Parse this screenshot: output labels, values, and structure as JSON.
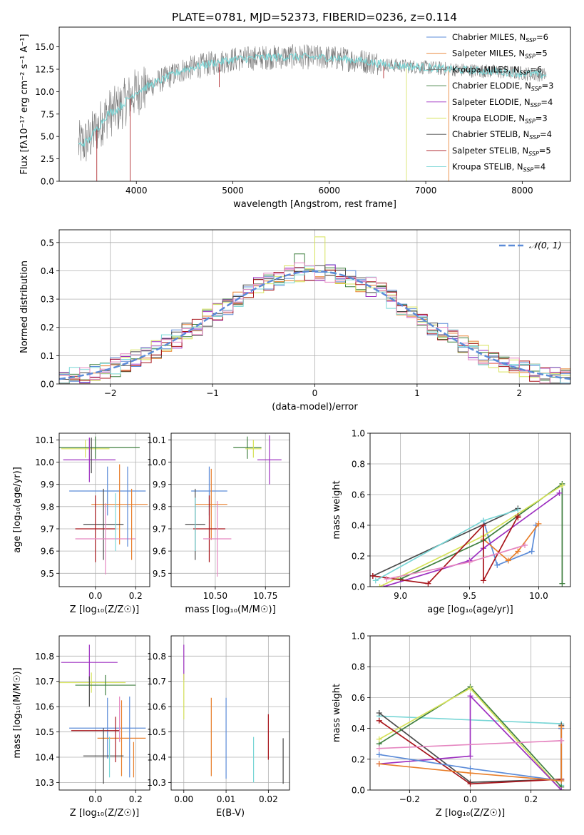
{
  "figure_title": "PLATE=0781, MJD=52373, FIBERID=0236, z=0.114",
  "colors": {
    "Chabrier MILES": "#5b8bd8",
    "Salpeter MILES": "#e87e2a",
    "Kroupa MILES": "#7a7a7a",
    "Chabrier ELODIE": "#3f7f3f",
    "Salpeter ELODIE": "#9d2fc0",
    "Kroupa ELODIE": "#d6e25a",
    "Chabrier STELIB": "#4a4a4a",
    "Salpeter STELIB": "#a8161c",
    "Kroupa STELIB": "#79d6d6",
    "pink": "#e586c0",
    "normal_curve": "#5b8bd8"
  },
  "chart_data": [
    {
      "type": "line",
      "xlabel": "wavelength [Angstrom, rest frame]",
      "ylabel": "Flux [fλ10⁻¹⁷ erg cm⁻² s⁻¹ A⁻¹]",
      "xlim": [
        3200,
        8500
      ],
      "ylim": [
        0,
        17.2
      ],
      "xticks": [
        4000,
        5000,
        6000,
        7000,
        8000
      ],
      "yticks": [
        0.0,
        2.5,
        5.0,
        7.5,
        10.0,
        12.5,
        15.0
      ],
      "legend_position": "top-right",
      "legend": [
        {
          "label": "Chabrier MILES, N",
          "sub": "SSP",
          "tail": "=6",
          "series": "Chabrier MILES"
        },
        {
          "label": "Salpeter MILES, N",
          "sub": "SSP",
          "tail": "=5",
          "series": "Salpeter MILES"
        },
        {
          "label": "Kroupa MILES, N",
          "sub": "SSP",
          "tail": "=6",
          "series": "Kroupa MILES"
        },
        {
          "label": "Chabrier ELODIE, N",
          "sub": "SSP",
          "tail": "=3",
          "series": "Chabrier ELODIE"
        },
        {
          "label": "Salpeter ELODIE, N",
          "sub": "SSP",
          "tail": "=4",
          "series": "Salpeter ELODIE"
        },
        {
          "label": "Kroupa ELODIE, N",
          "sub": "SSP",
          "tail": "=3",
          "series": "Kroupa ELODIE"
        },
        {
          "label": "Chabrier STELIB, N",
          "sub": "SSP",
          "tail": "=4",
          "series": "Chabrier STELIB"
        },
        {
          "label": "Salpeter STELIB, N",
          "sub": "SSP",
          "tail": "=5",
          "series": "Salpeter STELIB"
        },
        {
          "label": "Kroupa STELIB, N",
          "sub": "SSP",
          "tail": "=4",
          "series": "Kroupa STELIB"
        }
      ],
      "continuum_points": [
        [
          3400,
          4.0
        ],
        [
          3500,
          4.5
        ],
        [
          3600,
          6.0
        ],
        [
          3700,
          7.5
        ],
        [
          3800,
          8.0
        ],
        [
          3900,
          9.0
        ],
        [
          4000,
          10.0
        ],
        [
          4200,
          11.0
        ],
        [
          4500,
          12.5
        ],
        [
          4800,
          13.2
        ],
        [
          5000,
          13.6
        ],
        [
          5300,
          13.8
        ],
        [
          5600,
          13.9
        ],
        [
          6000,
          13.8
        ],
        [
          6300,
          13.5
        ],
        [
          6600,
          13.0
        ],
        [
          7000,
          12.7
        ],
        [
          7400,
          12.4
        ],
        [
          7800,
          12.2
        ],
        [
          8200,
          11.9
        ]
      ],
      "data_color": "#7a7a7a"
    },
    {
      "type": "bar",
      "subtype": "step-histogram",
      "xlabel": "(data-model)/error",
      "ylabel": "Normed distribution",
      "xlim": [
        -2.5,
        2.5
      ],
      "ylim": [
        0,
        0.545
      ],
      "xticks": [
        -2,
        -1,
        0,
        1,
        2
      ],
      "yticks": [
        0.0,
        0.1,
        0.2,
        0.3,
        0.4,
        0.5
      ],
      "bin_width": 0.1,
      "legend_position": "top-right",
      "legend_label": "𝒩(0, 1)",
      "normal": {
        "mean": 0,
        "sigma": 1
      }
    },
    {
      "type": "scatter",
      "subtype": "errorbar",
      "xlabel": "Z [log₁₀(Z/Z☉)]",
      "ylabel": "age  [log₁₀(age/yr)]",
      "xlim": [
        -0.18,
        0.27
      ],
      "ylim": [
        9.44,
        10.13
      ],
      "xticks": [
        0.0,
        0.2
      ],
      "yticks": [
        9.5,
        9.6,
        9.7,
        9.8,
        9.9,
        10.0,
        10.1
      ],
      "points": [
        {
          "series": "Kroupa ELODIE",
          "x": -0.05,
          "y": 10.06,
          "xerr": 0.12,
          "yerr": 0.04
        },
        {
          "series": "Chabrier ELODIE",
          "x": 0.0,
          "y": 10.065,
          "xerr": 0.22,
          "yerr": 0.05
        },
        {
          "series": "Salpeter ELODIE",
          "x": -0.03,
          "y": 10.01,
          "xerr": 0.13,
          "yerr": 0.1
        },
        {
          "series": "Chabrier MILES",
          "x": 0.06,
          "y": 9.87,
          "xerr": 0.19,
          "yerr": 0.11
        },
        {
          "series": "Salpeter MILES",
          "x": 0.12,
          "y": 9.81,
          "xerr": 0.14,
          "yerr": 0.18
        },
        {
          "series": "Chabrier STELIB",
          "x": 0.04,
          "y": 9.72,
          "xerr": 0.1,
          "yerr": 0.16
        },
        {
          "series": "Salpeter STELIB",
          "x": 0.0,
          "y": 9.7,
          "xerr": 0.1,
          "yerr": 0.15
        },
        {
          "series": "pink",
          "x": 0.05,
          "y": 9.655,
          "xerr": 0.15,
          "yerr": 0.16
        },
        {
          "series": "Chabrier MILES",
          "x": 0.16,
          "y": 9.8,
          "xerr": 0.0,
          "yerr": 0.18
        },
        {
          "series": "Salpeter MILES",
          "x": 0.18,
          "y": 9.72,
          "xerr": 0.0,
          "yerr": 0.16
        },
        {
          "series": "Kroupa STELIB",
          "x": 0.1,
          "y": 9.73,
          "xerr": 0.0,
          "yerr": 0.13
        },
        {
          "series": "Chabrier STELIB",
          "x": -0.02,
          "y": 10.03,
          "xerr": 0.0,
          "yerr": 0.08
        }
      ]
    },
    {
      "type": "scatter",
      "subtype": "errorbar",
      "xlabel": "mass [log₁₀(M/M☉)]",
      "ylabel": "",
      "xlim": [
        10.28,
        10.87
      ],
      "ylim": [
        9.44,
        10.13
      ],
      "xticks": [
        10.5,
        10.75
      ],
      "tick_labels": [
        "10.50",
        "10.75"
      ],
      "yticks": [
        9.5,
        9.6,
        9.7,
        9.8,
        9.9,
        10.0,
        10.1
      ],
      "points": [
        {
          "series": "Chabrier ELODIE",
          "x": 10.66,
          "y": 10.065,
          "xerr": 0.07,
          "yerr": 0.05
        },
        {
          "series": "Kroupa ELODIE",
          "x": 10.69,
          "y": 10.06,
          "xerr": 0.04,
          "yerr": 0.04
        },
        {
          "series": "Salpeter ELODIE",
          "x": 10.77,
          "y": 10.01,
          "xerr": 0.06,
          "yerr": 0.11
        },
        {
          "series": "Chabrier MILES",
          "x": 10.47,
          "y": 9.87,
          "xerr": 0.09,
          "yerr": 0.11
        },
        {
          "series": "Salpeter MILES",
          "x": 10.48,
          "y": 9.81,
          "xerr": 0.08,
          "yerr": 0.16
        },
        {
          "series": "Chabrier STELIB",
          "x": 10.4,
          "y": 9.72,
          "xerr": 0.05,
          "yerr": 0.16
        },
        {
          "series": "Salpeter STELIB",
          "x": 10.47,
          "y": 9.7,
          "xerr": 0.08,
          "yerr": 0.15
        },
        {
          "series": "pink",
          "x": 10.51,
          "y": 9.655,
          "xerr": 0.07,
          "yerr": 0.17
        },
        {
          "series": "Kroupa STELIB",
          "x": 10.4,
          "y": 9.72,
          "xerr": 0.0,
          "yerr": 0.12
        }
      ]
    },
    {
      "type": "line",
      "xlabel": "age  [log₁₀(age/yr)]",
      "ylabel": "mass weight",
      "xlim": [
        8.78,
        10.23
      ],
      "ylim": [
        0,
        1.0
      ],
      "xticks": [
        9.0,
        9.5,
        10.0
      ],
      "yticks": [
        0.0,
        0.2,
        0.4,
        0.6,
        0.8,
        1.0
      ],
      "series": [
        {
          "name": "Chabrier MILES",
          "x": [
            9.6,
            9.7,
            9.95,
            9.98
          ],
          "y": [
            0.43,
            0.14,
            0.23,
            0.4
          ]
        },
        {
          "name": "Salpeter MILES",
          "x": [
            9.6,
            9.78,
            9.85,
            10.0
          ],
          "y": [
            0.31,
            0.17,
            0.23,
            0.41
          ]
        },
        {
          "name": "Chabrier ELODIE",
          "x": [
            9.0,
            9.6,
            10.17,
            10.17
          ],
          "y": [
            0.05,
            0.3,
            0.67,
            0.02
          ]
        },
        {
          "name": "Salpeter ELODIE",
          "x": [
            8.88,
            9.5,
            9.6,
            10.15
          ],
          "y": [
            0.0,
            0.17,
            0.25,
            0.61
          ]
        },
        {
          "name": "Kroupa ELODIE",
          "x": [
            8.85,
            9.6,
            10.17
          ],
          "y": [
            0.0,
            0.33,
            0.66
          ]
        },
        {
          "name": "Chabrier STELIB",
          "x": [
            8.8,
            9.85
          ],
          "y": [
            0.07,
            0.51
          ]
        },
        {
          "name": "Salpeter STELIB",
          "x": [
            8.8,
            9.2,
            9.6,
            9.6,
            9.85,
            9.85
          ],
          "y": [
            0.07,
            0.02,
            0.4,
            0.04,
            0.46,
            0.45
          ]
        },
        {
          "name": "Kroupa STELIB",
          "x": [
            8.82,
            9.6,
            9.85
          ],
          "y": [
            0.04,
            0.43,
            0.5
          ]
        },
        {
          "name": "pink",
          "x": [
            8.9,
            9.5,
            9.9
          ],
          "y": [
            0.05,
            0.16,
            0.27
          ]
        }
      ]
    },
    {
      "type": "scatter",
      "subtype": "errorbar",
      "xlabel": "Z [log₁₀(Z/Z☉)]",
      "ylabel": "mass [log₁₀(M/M☉)]",
      "xlim": [
        -0.18,
        0.27
      ],
      "ylim": [
        10.27,
        10.88
      ],
      "xticks": [
        0.0,
        0.2
      ],
      "yticks": [
        10.3,
        10.4,
        10.5,
        10.6,
        10.7,
        10.8
      ],
      "points": [
        {
          "series": "Salpeter ELODIE",
          "x": -0.03,
          "y": 10.775,
          "xerr": 0.14,
          "yerr": 0.07
        },
        {
          "series": "Kroupa ELODIE",
          "x": -0.02,
          "y": 10.695,
          "xerr": 0.17,
          "yerr": 0.04
        },
        {
          "series": "Chabrier ELODIE",
          "x": 0.05,
          "y": 10.685,
          "xerr": 0.15,
          "yerr": 0.04
        },
        {
          "series": "Chabrier MILES",
          "x": 0.06,
          "y": 10.515,
          "xerr": 0.19,
          "yerr": 0.12
        },
        {
          "series": "Salpeter STELIB",
          "x": 0.0,
          "y": 10.505,
          "xerr": 0.12,
          "yerr": 0.0
        },
        {
          "series": "Salpeter MILES",
          "x": 0.13,
          "y": 10.475,
          "xerr": 0.12,
          "yerr": 0.15
        },
        {
          "series": "Chabrier STELIB",
          "x": 0.04,
          "y": 10.405,
          "xerr": 0.1,
          "yerr": 0.11
        },
        {
          "series": "Kroupa STELIB",
          "x": 0.07,
          "y": 10.4,
          "xerr": 0.0,
          "yerr": 0.08
        },
        {
          "series": "pink",
          "x": 0.12,
          "y": 10.55,
          "xerr": 0.0,
          "yerr": 0.09
        },
        {
          "series": "Chabrier MILES",
          "x": 0.17,
          "y": 10.48,
          "xerr": 0.0,
          "yerr": 0.16
        },
        {
          "series": "Salpeter STELIB",
          "x": 0.1,
          "y": 10.47,
          "xerr": 0.0,
          "yerr": 0.09
        },
        {
          "series": "Chabrier STELIB",
          "x": -0.03,
          "y": 10.66,
          "xerr": 0.0,
          "yerr": 0.06
        },
        {
          "series": "Salpeter MILES",
          "x": 0.19,
          "y": 10.39,
          "xerr": 0.0,
          "yerr": 0.07
        }
      ]
    },
    {
      "type": "scatter",
      "subtype": "errorbar",
      "xlabel": "E(B-V)",
      "ylabel": "",
      "xlim": [
        -0.003,
        0.025
      ],
      "ylim": [
        10.27,
        10.88
      ],
      "xticks": [
        0.0,
        0.01,
        0.02
      ],
      "tick_labels": [
        "0.00",
        "0.01",
        "0.02"
      ],
      "yticks": [
        10.3,
        10.4,
        10.5,
        10.6,
        10.7,
        10.8
      ],
      "points": [
        {
          "series": "Salpeter ELODIE",
          "x": 0.0,
          "y": 10.775,
          "xerr": 0,
          "yerr": 0.07
        },
        {
          "series": "Kroupa ELODIE",
          "x": 0.0,
          "y": 10.64,
          "xerr": 0,
          "yerr": 0.09
        },
        {
          "series": "Salpeter MILES",
          "x": 0.0065,
          "y": 10.48,
          "xerr": 0,
          "yerr": 0.155
        },
        {
          "series": "Chabrier MILES",
          "x": 0.01,
          "y": 10.475,
          "xerr": 0,
          "yerr": 0.16
        },
        {
          "series": "Kroupa STELIB",
          "x": 0.0165,
          "y": 10.39,
          "xerr": 0,
          "yerr": 0.09
        },
        {
          "series": "Salpeter STELIB",
          "x": 0.02,
          "y": 10.48,
          "xerr": 0,
          "yerr": 0.09
        },
        {
          "series": "Chabrier STELIB",
          "x": 0.0235,
          "y": 10.385,
          "xerr": 0,
          "yerr": 0.09
        }
      ]
    },
    {
      "type": "line",
      "xlabel": "Z [log₁₀(Z/Z☉)]",
      "ylabel": "mass weight",
      "xlim": [
        -0.33,
        0.33
      ],
      "ylim": [
        0,
        1.0
      ],
      "xticks": [
        -0.2,
        0.0,
        0.2
      ],
      "tick_labels": [
        "−0.2",
        "0.0",
        "0.2"
      ],
      "yticks": [
        0.0,
        0.2,
        0.4,
        0.6,
        0.8,
        1.0
      ],
      "series": [
        {
          "name": "Kroupa STELIB",
          "x": [
            -0.3,
            0.3,
            0.3
          ],
          "y": [
            0.48,
            0.43,
            0.03
          ]
        },
        {
          "name": "Chabrier STELIB",
          "x": [
            -0.3,
            0.0,
            0.3,
            0.3
          ],
          "y": [
            0.5,
            0.05,
            0.07,
            0.42
          ]
        },
        {
          "name": "Chabrier ELODIE",
          "x": [
            -0.3,
            0.0,
            0.3
          ],
          "y": [
            0.3,
            0.67,
            0.02
          ]
        },
        {
          "name": "Kroupa ELODIE",
          "x": [
            -0.3,
            0.0,
            0.3
          ],
          "y": [
            0.33,
            0.66,
            0.0
          ]
        },
        {
          "name": "Salpeter ELODIE",
          "x": [
            -0.3,
            0.0,
            0.0,
            0.3
          ],
          "y": [
            0.17,
            0.22,
            0.61,
            0.0
          ]
        },
        {
          "name": "Salpeter STELIB",
          "x": [
            -0.3,
            0.0,
            0.3,
            0.3
          ],
          "y": [
            0.45,
            0.04,
            0.07,
            0.4
          ]
        },
        {
          "name": "Chabrier MILES",
          "x": [
            -0.3,
            0.0,
            0.3,
            0.3
          ],
          "y": [
            0.23,
            0.14,
            0.06,
            0.4
          ]
        },
        {
          "name": "Salpeter MILES",
          "x": [
            -0.3,
            0.0,
            0.3,
            0.3
          ],
          "y": [
            0.17,
            0.11,
            0.06,
            0.41
          ]
        },
        {
          "name": "pink",
          "x": [
            -0.3,
            0.3
          ],
          "y": [
            0.27,
            0.32
          ]
        }
      ]
    }
  ]
}
